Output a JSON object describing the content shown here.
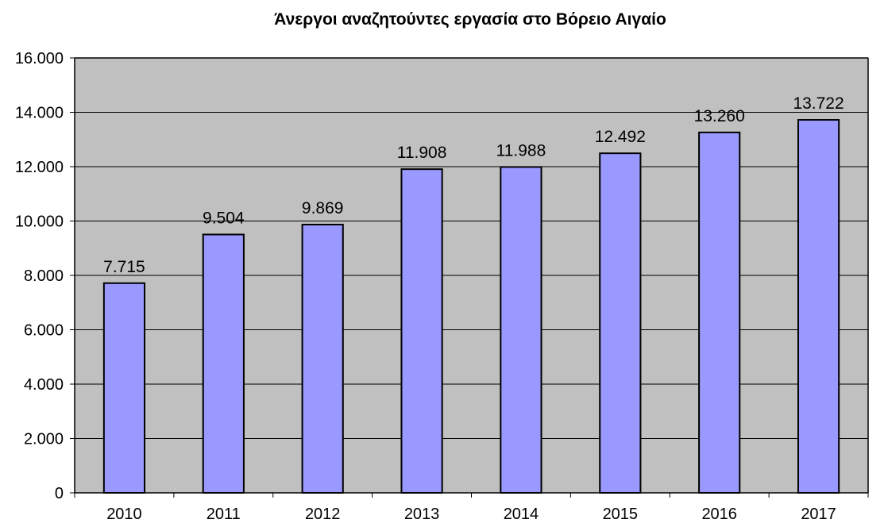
{
  "chart_data": {
    "type": "bar",
    "title": "Άνεργοι αναζητούντες εργασία στο Βόρειο Αιγαίο",
    "xlabel": "",
    "ylabel": "",
    "categories": [
      "2010",
      "2011",
      "2012",
      "2013",
      "2014",
      "2015",
      "2016",
      "2017"
    ],
    "values": [
      7715,
      9504,
      9869,
      11908,
      11988,
      12492,
      13260,
      13722
    ],
    "data_labels": [
      "7.715",
      "9.504",
      "9.869",
      "11.908",
      "11.988",
      "12.492",
      "13.260",
      "13.722"
    ],
    "ylim": [
      0,
      16000
    ],
    "y_ticks": [
      0,
      2000,
      4000,
      6000,
      8000,
      10000,
      12000,
      14000,
      16000
    ],
    "y_tick_labels": [
      "0",
      "2.000",
      "4.000",
      "6.000",
      "8.000",
      "10.000",
      "12.000",
      "14.000",
      "16.000"
    ],
    "grid": true,
    "legend": "none",
    "colors": {
      "bar_fill": "#9999ff",
      "bar_stroke": "#000000",
      "plot_background": "#c0c0c0",
      "gridline": "#000000"
    }
  }
}
